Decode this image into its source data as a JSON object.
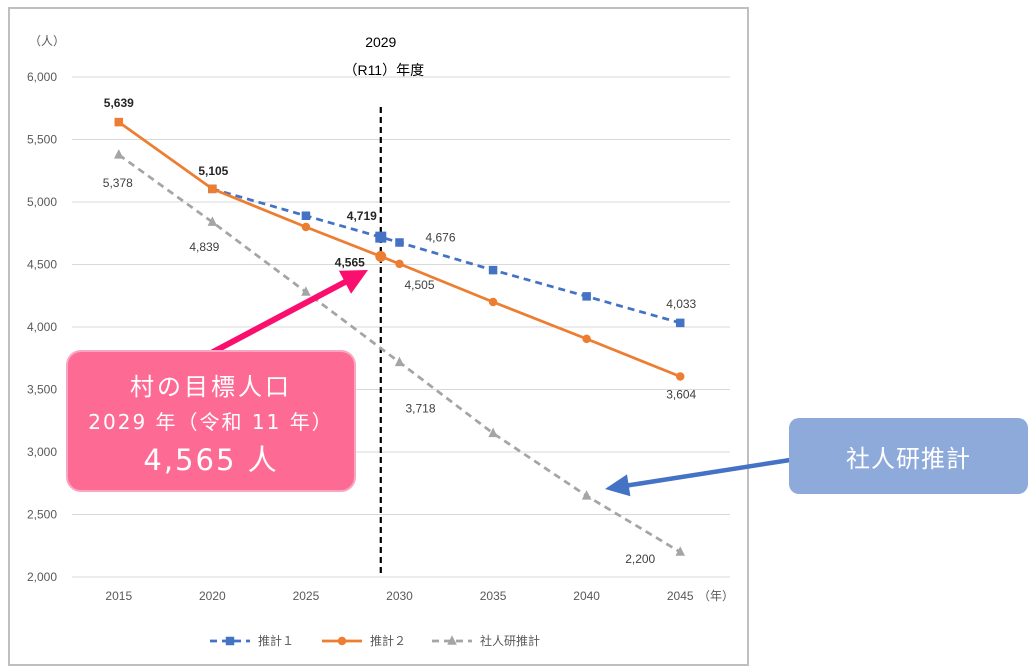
{
  "chart_data": {
    "type": "line",
    "ylabel": "（人）",
    "xlabel": "（年）",
    "ylim": [
      2000,
      6000
    ],
    "yticks": [
      2000,
      2500,
      3000,
      3500,
      4000,
      4500,
      5000,
      5500,
      6000
    ],
    "ytick_labels": [
      "2,000",
      "2,500",
      "3,000",
      "3,500",
      "4,000",
      "4,500",
      "5,000",
      "5,500",
      "6,000"
    ],
    "xticks": [
      2015,
      2020,
      2025,
      2030,
      2035,
      2040,
      2045
    ],
    "xtick_labels": [
      "2015",
      "2020",
      "2025",
      "2030",
      "2035",
      "2040",
      "2045"
    ],
    "grid": true,
    "legend_position": "bottom",
    "reference_line": {
      "x": 2029,
      "label": "2029",
      "sublabel": "（R11）年度",
      "color": "#000000",
      "style": "dashed"
    },
    "series": [
      {
        "name": "推計１",
        "color": "#4472c4",
        "line_style": "dashed",
        "marker": "square",
        "points": [
          {
            "x": 2020,
            "y": 5105
          },
          {
            "x": 2025,
            "y": 4890
          },
          {
            "x": 2029,
            "y": 4719,
            "label": "4,719"
          },
          {
            "x": 2030,
            "y": 4676,
            "label": "4,676"
          },
          {
            "x": 2035,
            "y": 4455
          },
          {
            "x": 2040,
            "y": 4245
          },
          {
            "x": 2045,
            "y": 4033,
            "label": "4,033"
          }
        ]
      },
      {
        "name": "推計２",
        "color": "#ed7d31",
        "line_style": "solid",
        "marker": "circle",
        "points": [
          {
            "x": 2015,
            "y": 5639,
            "label": "5,639"
          },
          {
            "x": 2020,
            "y": 5105,
            "label": "5,105"
          },
          {
            "x": 2025,
            "y": 4800
          },
          {
            "x": 2029,
            "y": 4565,
            "label": "4,565"
          },
          {
            "x": 2030,
            "y": 4505,
            "label": "4,505"
          },
          {
            "x": 2035,
            "y": 4200
          },
          {
            "x": 2040,
            "y": 3905
          },
          {
            "x": 2045,
            "y": 3604,
            "label": "3,604"
          }
        ]
      },
      {
        "name": "社人研推計",
        "color": "#a5a5a5",
        "line_style": "dashed",
        "marker": "triangle",
        "points": [
          {
            "x": 2015,
            "y": 5378,
            "label": "5,378"
          },
          {
            "x": 2020,
            "y": 4839,
            "label": "4,839"
          },
          {
            "x": 2025,
            "y": 4280
          },
          {
            "x": 2030,
            "y": 3718,
            "label": "3,718"
          },
          {
            "x": 2035,
            "y": 3150
          },
          {
            "x": 2040,
            "y": 2650
          },
          {
            "x": 2045,
            "y": 2200,
            "label": "2,200"
          }
        ]
      }
    ]
  },
  "callouts": {
    "target": {
      "line1": "村の目標人口",
      "line2": "2029 年（令和 11 年）",
      "line3": "4,565 人",
      "color": "#fd6b95",
      "arrow_color": "#fa0f6e"
    },
    "ipss": {
      "label": "社人研推計",
      "color": "#8eaadb",
      "arrow_color": "#4472c4"
    }
  }
}
